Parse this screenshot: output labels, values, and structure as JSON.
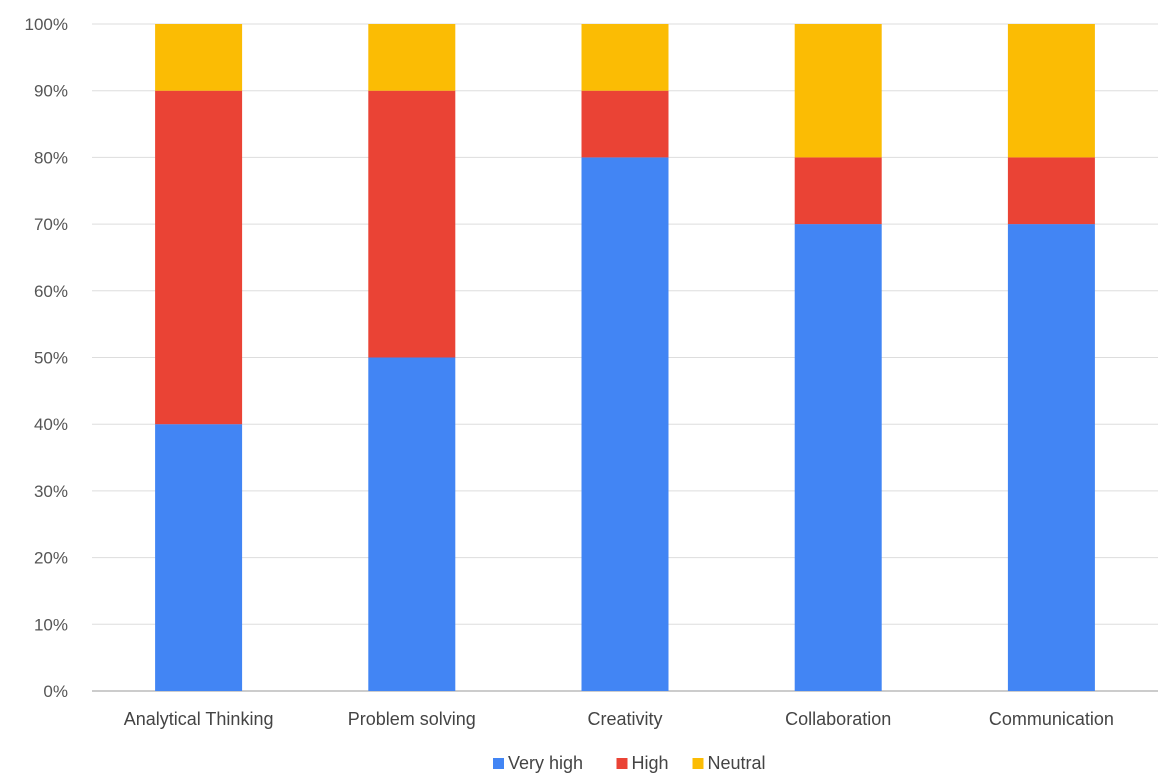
{
  "chart_data": {
    "type": "bar",
    "stacked": true,
    "title": "",
    "xlabel": "",
    "ylabel": "",
    "categories": [
      "Analytical Thinking",
      "Problem solving",
      "Creativity",
      "Collaboration",
      "Communication"
    ],
    "series": [
      {
        "name": "Very high",
        "color": "#4285F4",
        "values": [
          40,
          50,
          80,
          70,
          70
        ]
      },
      {
        "name": "High",
        "color": "#EA4335",
        "values": [
          50,
          40,
          10,
          10,
          10
        ]
      },
      {
        "name": "Neutral",
        "color": "#FBBC04",
        "values": [
          10,
          10,
          10,
          20,
          20
        ]
      }
    ],
    "ylim": [
      0,
      100
    ],
    "yticks": [
      "0%",
      "10%",
      "20%",
      "30%",
      "40%",
      "50%",
      "60%",
      "70%",
      "80%",
      "90%",
      "100%"
    ],
    "grid": true,
    "legend_position": "bottom"
  }
}
